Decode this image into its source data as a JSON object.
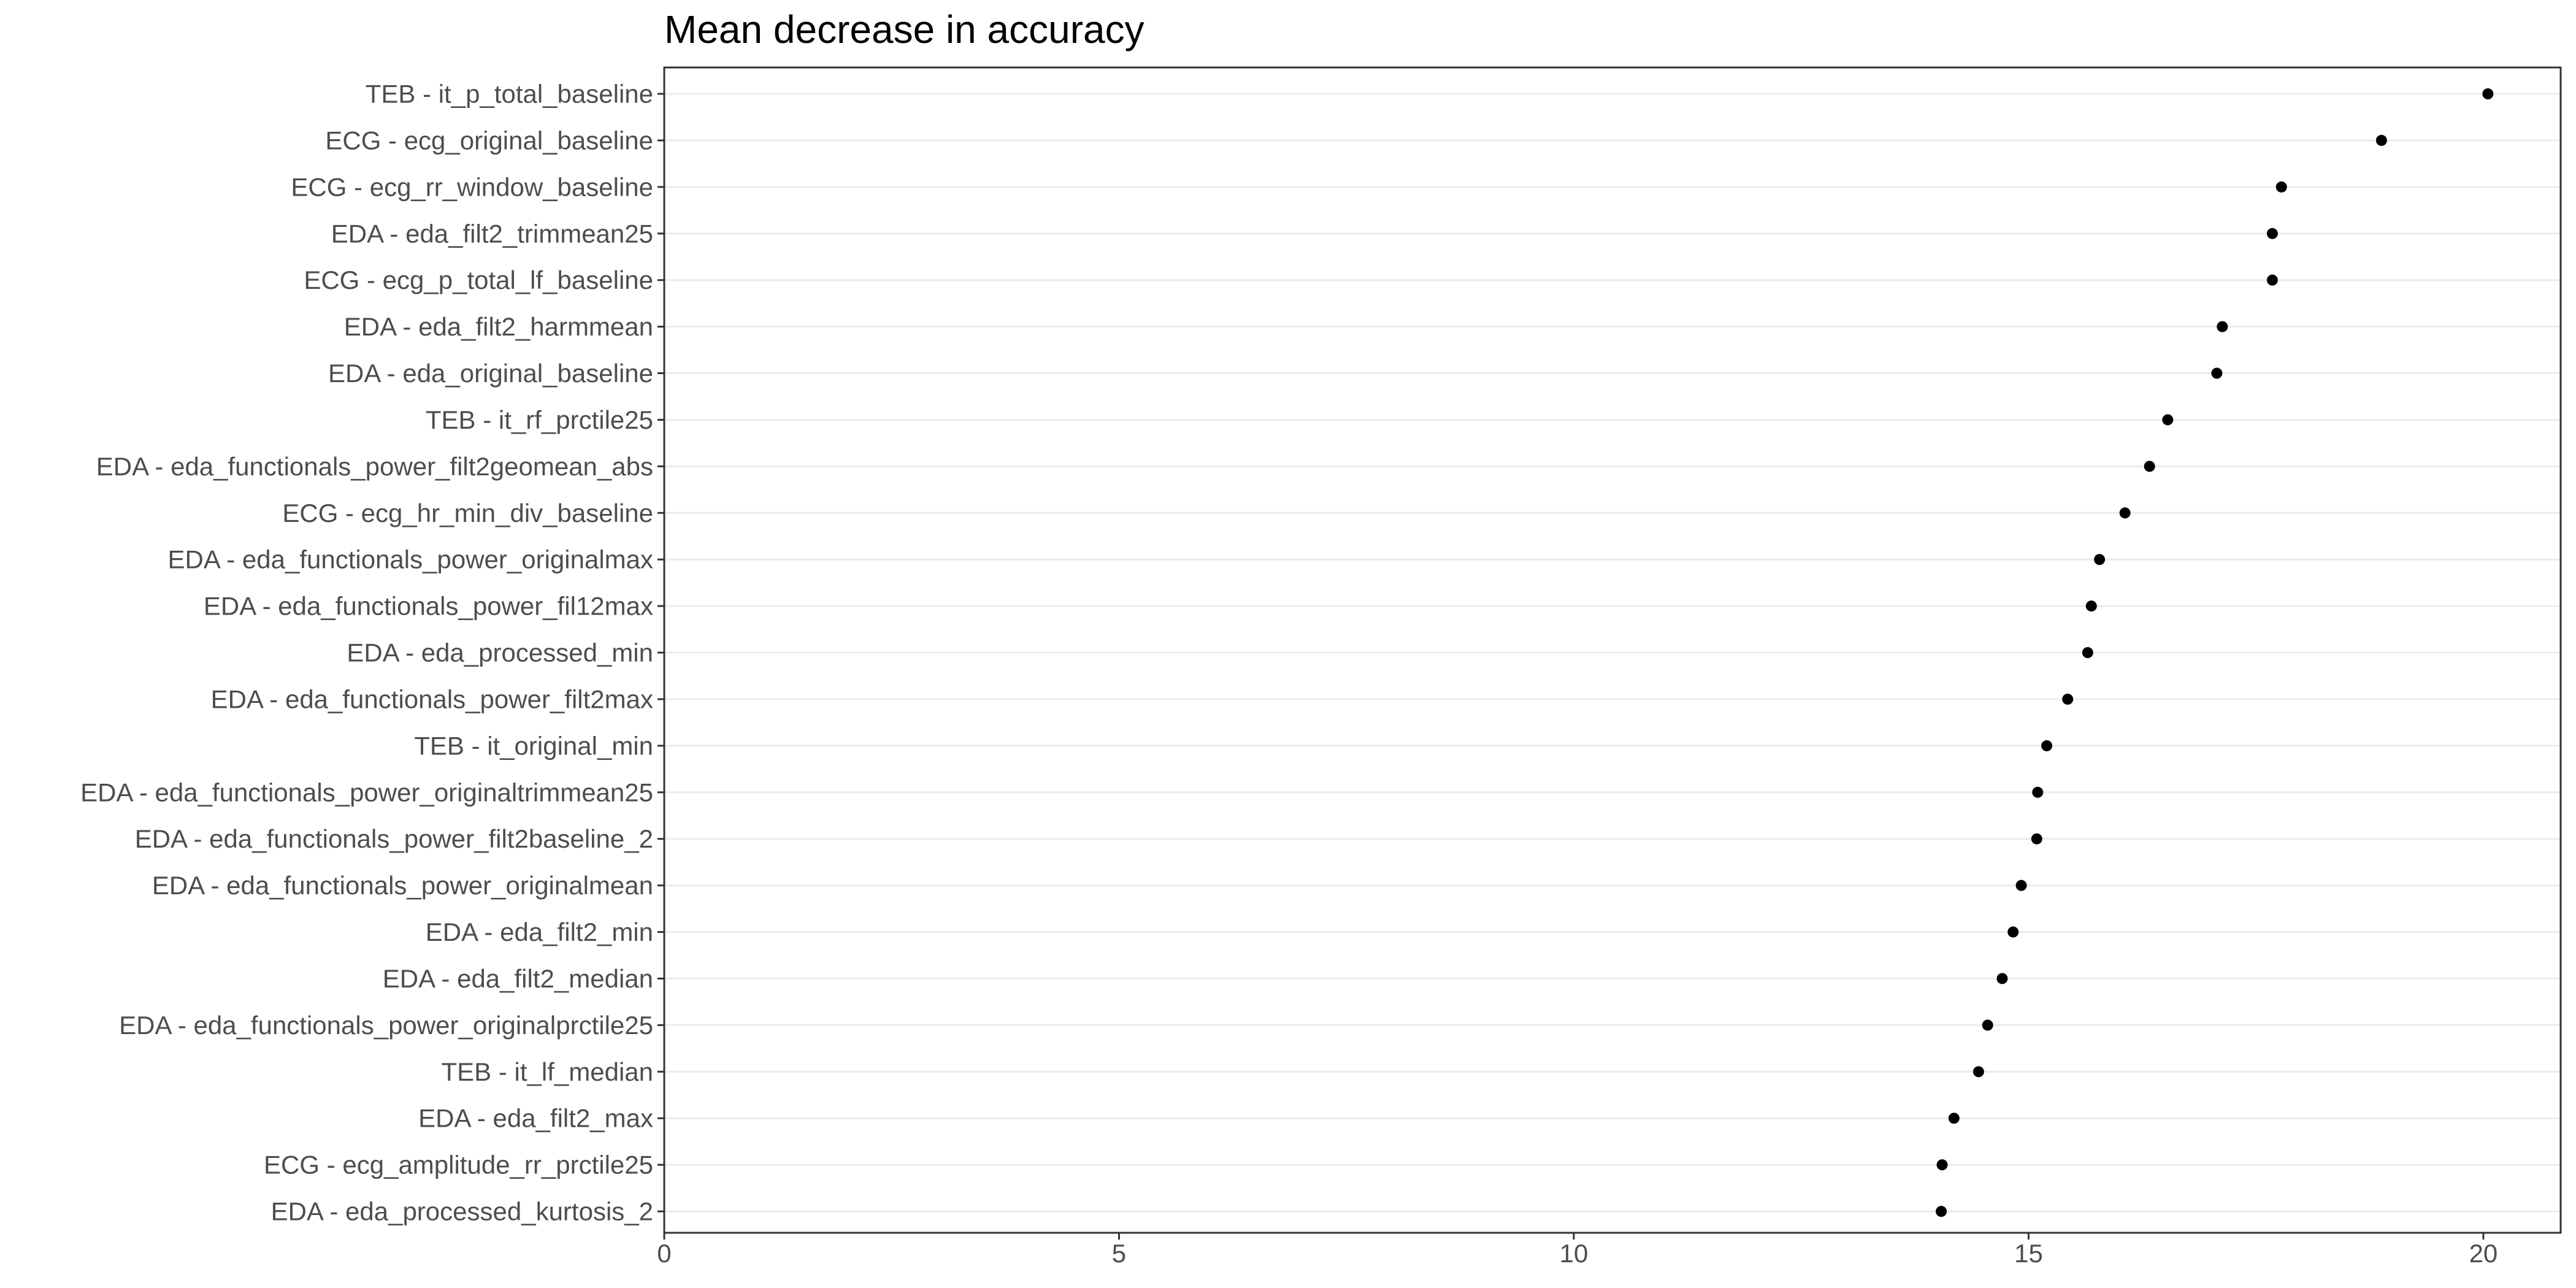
{
  "chart_data": {
    "type": "scatter",
    "title": "Mean decrease in accuracy",
    "xlabel": "",
    "ylabel": "",
    "xlim": [
      0,
      20.85
    ],
    "x_ticks": [
      0,
      5,
      10,
      15,
      20
    ],
    "grid": true,
    "colors": {
      "point": "#000000",
      "grid": "#ebebeb",
      "border": "#333333",
      "tick_label": "#4d4d4d"
    },
    "categories": [
      "TEB - it_p_total_baseline",
      "ECG - ecg_original_baseline",
      "ECG - ecg_rr_window_baseline",
      "EDA - eda_filt2_trimmean25",
      "ECG - ecg_p_total_lf_baseline",
      "EDA - eda_filt2_harmmean",
      "EDA - eda_original_baseline",
      "TEB - it_rf_prctile25",
      "EDA - eda_functionals_power_filt2geomean_abs",
      "ECG - ecg_hr_min_div_baseline",
      "EDA - eda_functionals_power_originalmax",
      "EDA - eda_functionals_power_fil12max",
      "EDA - eda_processed_min",
      "EDA - eda_functionals_power_filt2max",
      "TEB - it_original_min",
      "EDA - eda_functionals_power_originaltrimmean25",
      "EDA - eda_functionals_power_filt2baseline_2",
      "EDA - eda_functionals_power_originalmean",
      "EDA - eda_filt2_min",
      "EDA - eda_filt2_median",
      "EDA - eda_functionals_power_originalprctile25",
      "TEB - it_lf_median",
      "EDA - eda_filt2_max",
      "ECG - ecg_amplitude_rr_prctile25",
      "EDA - eda_processed_kurtosis_2"
    ],
    "values": [
      20.05,
      18.88,
      17.78,
      17.68,
      17.68,
      17.13,
      17.07,
      16.53,
      16.33,
      16.06,
      15.78,
      15.69,
      15.65,
      15.43,
      15.2,
      15.1,
      15.09,
      14.92,
      14.83,
      14.71,
      14.55,
      14.45,
      14.18,
      14.05,
      14.04
    ]
  }
}
